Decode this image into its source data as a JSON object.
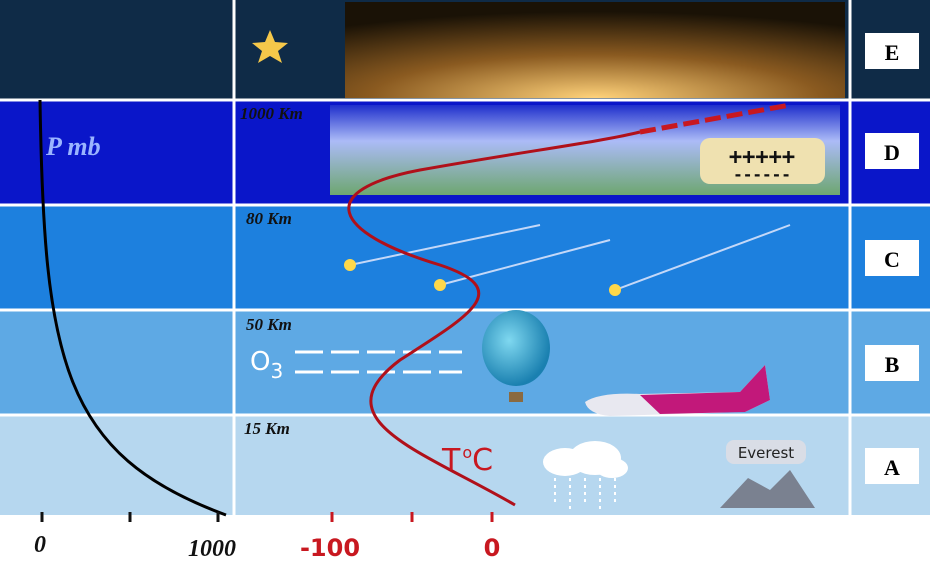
{
  "pressure_label": "P mb",
  "altitude_labels": [
    "1000 Km",
    "80 Km",
    "50 Km",
    "15 Km"
  ],
  "layers": [
    "E",
    "D",
    "C",
    "B",
    "A"
  ],
  "charges": {
    "positive": "+++++",
    "negative": "------"
  },
  "ozone": {
    "symbol": "O",
    "subscript": "3"
  },
  "temperature_label": {
    "symbol": "T",
    "degree": "o",
    "unit": "C"
  },
  "everest": "Everest",
  "pressure_axis": [
    "0",
    "1000"
  ],
  "temperature_axis": [
    "-100",
    "0"
  ]
}
